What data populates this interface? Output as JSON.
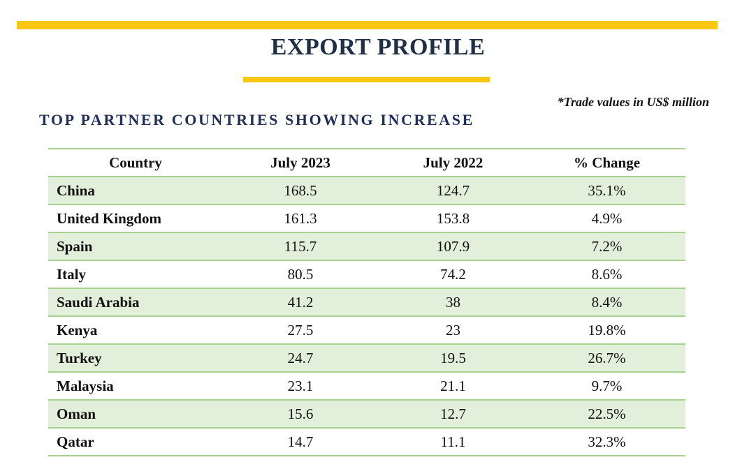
{
  "header": {
    "title": "EXPORT PROFILE",
    "accent_color": "#f9c611",
    "title_color": "#1f2f45"
  },
  "note": "*Trade values in US$ million",
  "section": {
    "title": "TOP PARTNER COUNTRIES SHOWING INCREASE"
  },
  "table": {
    "columns": [
      "Country",
      "July 2023",
      "July 2022",
      "% Change"
    ],
    "rows": [
      {
        "country": "China",
        "jul_2023": "168.5",
        "jul_2022": "124.7",
        "change": "35.1%"
      },
      {
        "country": "United Kingdom",
        "jul_2023": "161.3",
        "jul_2022": "153.8",
        "change": "4.9%"
      },
      {
        "country": "Spain",
        "jul_2023": "115.7",
        "jul_2022": "107.9",
        "change": "7.2%"
      },
      {
        "country": "Italy",
        "jul_2023": "80.5",
        "jul_2022": "74.2",
        "change": "8.6%"
      },
      {
        "country": "Saudi Arabia",
        "jul_2023": "41.2",
        "jul_2022": "38",
        "change": "8.4%"
      },
      {
        "country": "Kenya",
        "jul_2023": "27.5",
        "jul_2022": "23",
        "change": "19.8%"
      },
      {
        "country": "Turkey",
        "jul_2023": "24.7",
        "jul_2022": "19.5",
        "change": "26.7%"
      },
      {
        "country": "Malaysia",
        "jul_2023": "23.1",
        "jul_2022": "21.1",
        "change": "9.7%"
      },
      {
        "country": "Oman",
        "jul_2023": "15.6",
        "jul_2022": "12.7",
        "change": "22.5%"
      },
      {
        "country": "Qatar",
        "jul_2023": "14.7",
        "jul_2022": "11.1",
        "change": "32.3%"
      }
    ],
    "row_shade_color": "#e2efda",
    "rule_color": "#a9d08e"
  }
}
